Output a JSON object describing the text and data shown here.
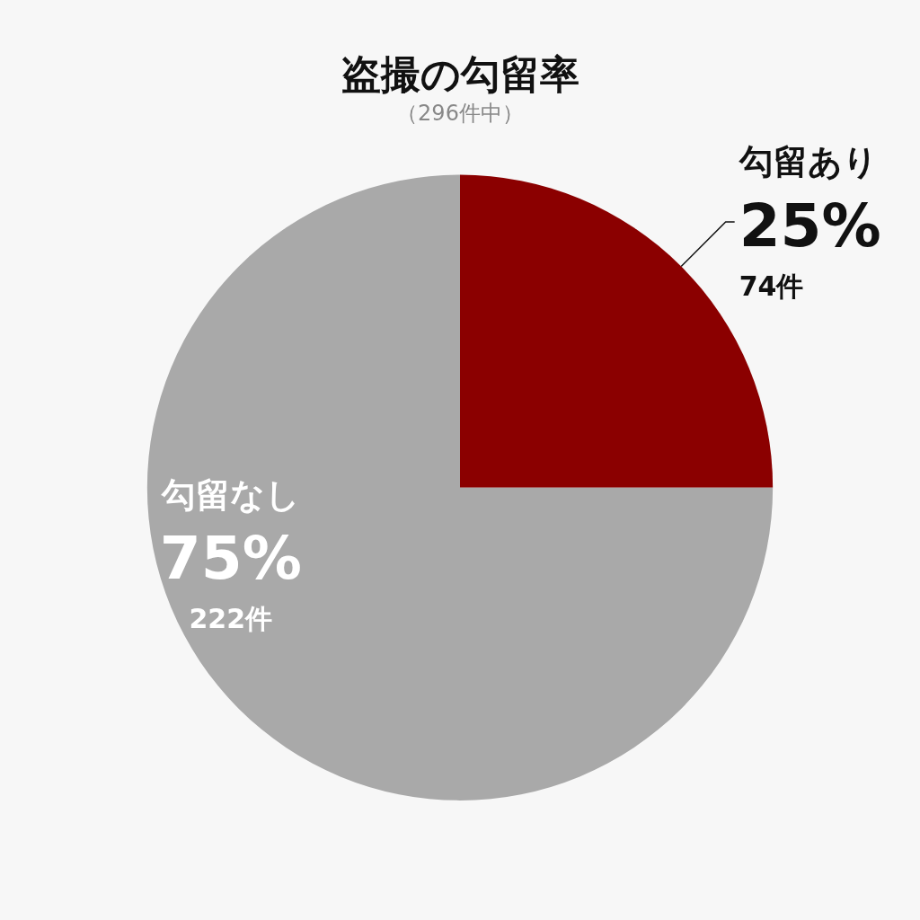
{
  "chart_data": {
    "type": "pie",
    "title": "盗撮の勾留率",
    "subtitle": "（296件中）",
    "categories": [
      "勾留あり",
      "勾留なし"
    ],
    "values": [
      25,
      75
    ],
    "colors": [
      "#8b0000",
      "#a9a9a9"
    ],
    "value_labels": [
      "25%\n74件",
      "75%\n222件"
    ],
    "legend": false
  }
}
